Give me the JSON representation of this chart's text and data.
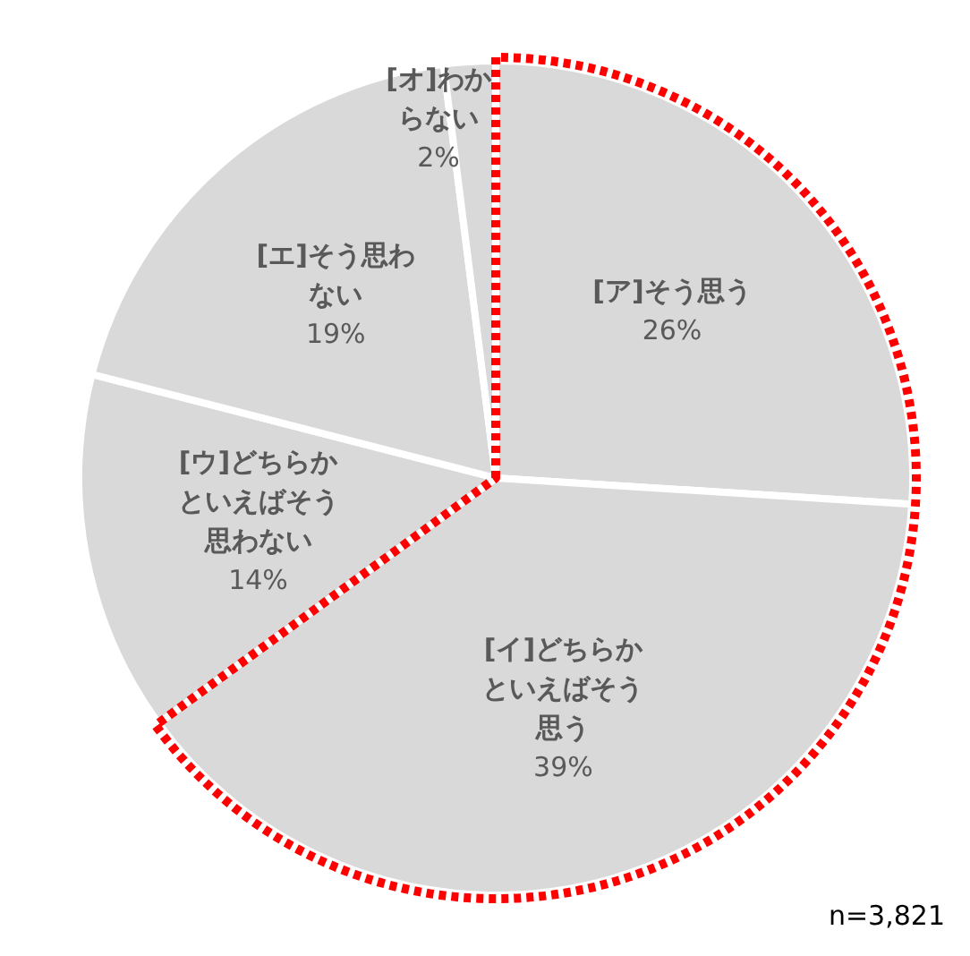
{
  "chart_data": {
    "type": "pie",
    "categories": [
      "[ア]そう思う",
      "[イ]どちらかといえばそう思う",
      "[ウ]どちらかといえばそう思わない",
      "[エ]そう思わない",
      "[オ]わからない"
    ],
    "values": [
      26,
      39,
      14,
      19,
      2
    ],
    "value_labels": [
      "26%",
      "39%",
      "14%",
      "19%",
      "2%"
    ],
    "colors": [
      "#d9d9d9",
      "#d9d9d9",
      "#d9d9d9",
      "#d9d9d9",
      "#d9d9d9"
    ],
    "legend": false,
    "annotations": [
      "n=3,821"
    ]
  }
}
